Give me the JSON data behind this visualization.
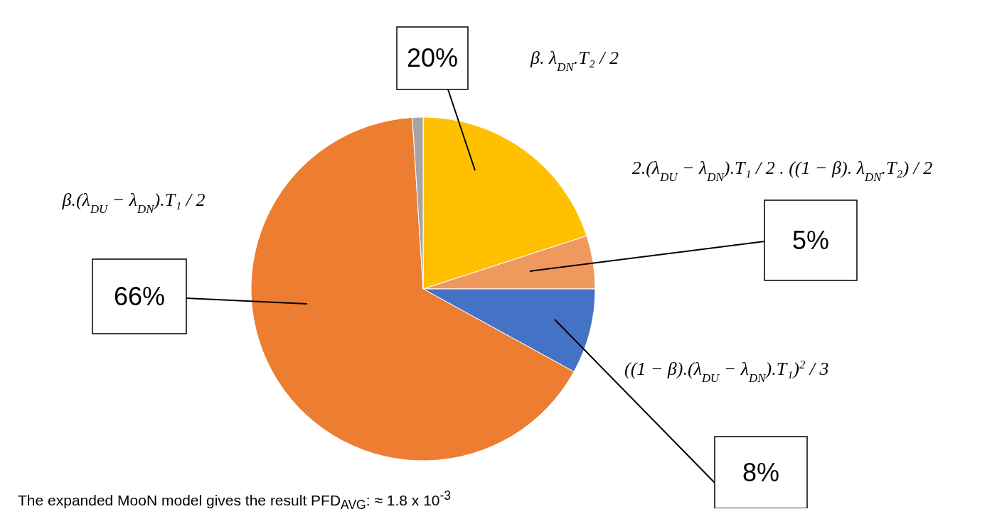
{
  "chart_data": {
    "type": "pie",
    "categories": [
      "β. λ$_{DN}$.T₂ / 2",
      "2.(λ$_{DU}$ − λ$_{DN}$).T₁ / 2 . ((1 − β). λ$_{DN}$.T₂) / 2",
      "((1 − β).(λ$_{DU}$ − λ$_{DN}$).T₁)$^{2}$ / 3",
      "β.(λ$_{DU}$ − λ$_{DN}$).T₁ / 2",
      null
    ],
    "values": [
      20,
      5,
      8,
      66,
      1
    ],
    "colors": [
      "#ffc000",
      "#f0995e",
      "#4472c4",
      "#ed7d31",
      "#a5a5a5"
    ],
    "value_labels": [
      "20%",
      "5%",
      "8%",
      "66%",
      null
    ],
    "annotations": [
      "The expanded MooN model gives the result PFD$_{AVG}$: ≈ 1.8 x 10$^{-3}$"
    ]
  }
}
